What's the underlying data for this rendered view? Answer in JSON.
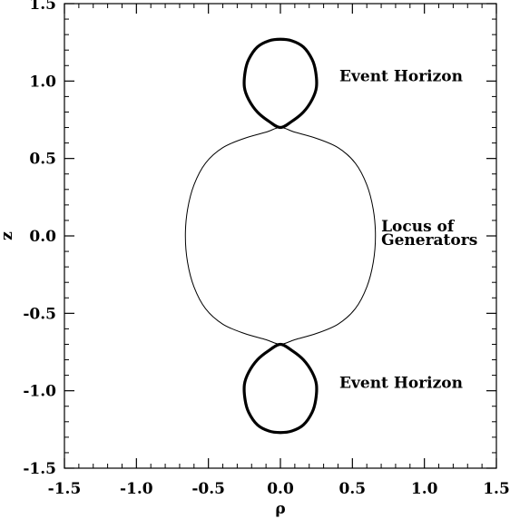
{
  "chart_data": {
    "type": "line",
    "title": "",
    "xlabel": "ρ",
    "ylabel": "z",
    "xlim": [
      -1.5,
      1.5
    ],
    "ylim": [
      -1.5,
      1.5
    ],
    "xticks": [
      "-1.5",
      "-1.0",
      "-0.5",
      "0.0",
      "0.5",
      "1.0",
      "1.5"
    ],
    "yticks": [
      "1.5",
      "1.0",
      "0.5",
      "0.0",
      "-0.5",
      "-1.0",
      "-1.5"
    ],
    "grid": false,
    "series": [
      {
        "color": "#000000",
        "style": "thick",
        "points": [
          [
            0.0,
            0.7
          ],
          [
            0.08,
            0.74
          ],
          [
            0.16,
            0.8
          ],
          [
            0.22,
            0.88
          ],
          [
            0.25,
            0.96
          ],
          [
            0.245,
            1.06
          ],
          [
            0.22,
            1.14
          ],
          [
            0.16,
            1.22
          ],
          [
            0.08,
            1.26
          ],
          [
            0.0,
            1.27
          ],
          [
            -0.08,
            1.26
          ],
          [
            -0.16,
            1.22
          ],
          [
            -0.22,
            1.14
          ],
          [
            -0.245,
            1.06
          ],
          [
            -0.25,
            0.96
          ],
          [
            -0.22,
            0.88
          ],
          [
            -0.16,
            0.8
          ],
          [
            -0.08,
            0.74
          ],
          [
            0.0,
            0.7
          ]
        ]
      },
      {
        "color": "#000000",
        "style": "thick",
        "points": [
          [
            0.0,
            -0.7
          ],
          [
            0.08,
            -0.74
          ],
          [
            0.16,
            -0.8
          ],
          [
            0.22,
            -0.88
          ],
          [
            0.25,
            -0.96
          ],
          [
            0.245,
            -1.06
          ],
          [
            0.22,
            -1.14
          ],
          [
            0.16,
            -1.22
          ],
          [
            0.08,
            -1.26
          ],
          [
            0.0,
            -1.27
          ],
          [
            -0.08,
            -1.26
          ],
          [
            -0.16,
            -1.22
          ],
          [
            -0.22,
            -1.14
          ],
          [
            -0.245,
            -1.06
          ],
          [
            -0.25,
            -0.96
          ],
          [
            -0.22,
            -0.88
          ],
          [
            -0.16,
            -0.8
          ],
          [
            -0.08,
            -0.74
          ],
          [
            0.0,
            -0.7
          ]
        ]
      },
      {
        "color": "#000000",
        "style": "thin",
        "points": [
          [
            0.0,
            0.7
          ],
          [
            0.1,
            0.67
          ],
          [
            0.25,
            0.63
          ],
          [
            0.4,
            0.57
          ],
          [
            0.52,
            0.47
          ],
          [
            0.6,
            0.33
          ],
          [
            0.645,
            0.17
          ],
          [
            0.66,
            0.0
          ],
          [
            0.645,
            -0.17
          ],
          [
            0.6,
            -0.33
          ],
          [
            0.52,
            -0.47
          ],
          [
            0.4,
            -0.57
          ],
          [
            0.25,
            -0.63
          ],
          [
            0.1,
            -0.67
          ],
          [
            0.0,
            -0.7
          ],
          [
            -0.1,
            -0.67
          ],
          [
            -0.25,
            -0.63
          ],
          [
            -0.4,
            -0.57
          ],
          [
            -0.52,
            -0.47
          ],
          [
            -0.6,
            -0.33
          ],
          [
            -0.645,
            -0.17
          ],
          [
            -0.66,
            0.0
          ],
          [
            -0.645,
            0.17
          ],
          [
            -0.6,
            0.33
          ],
          [
            -0.52,
            0.47
          ],
          [
            -0.4,
            0.57
          ],
          [
            -0.25,
            0.63
          ],
          [
            -0.1,
            0.67
          ],
          [
            0.0,
            0.7
          ]
        ]
      }
    ],
    "annotations": [
      {
        "text": "Event Horizon",
        "x": 0.41,
        "y": 1.0
      },
      {
        "text": "Locus of",
        "x": 0.7,
        "y": 0.03
      },
      {
        "text": "Generators",
        "x": 0.7,
        "y": -0.06
      },
      {
        "text": "Event Horizon",
        "x": 0.41,
        "y": -0.98
      }
    ]
  }
}
